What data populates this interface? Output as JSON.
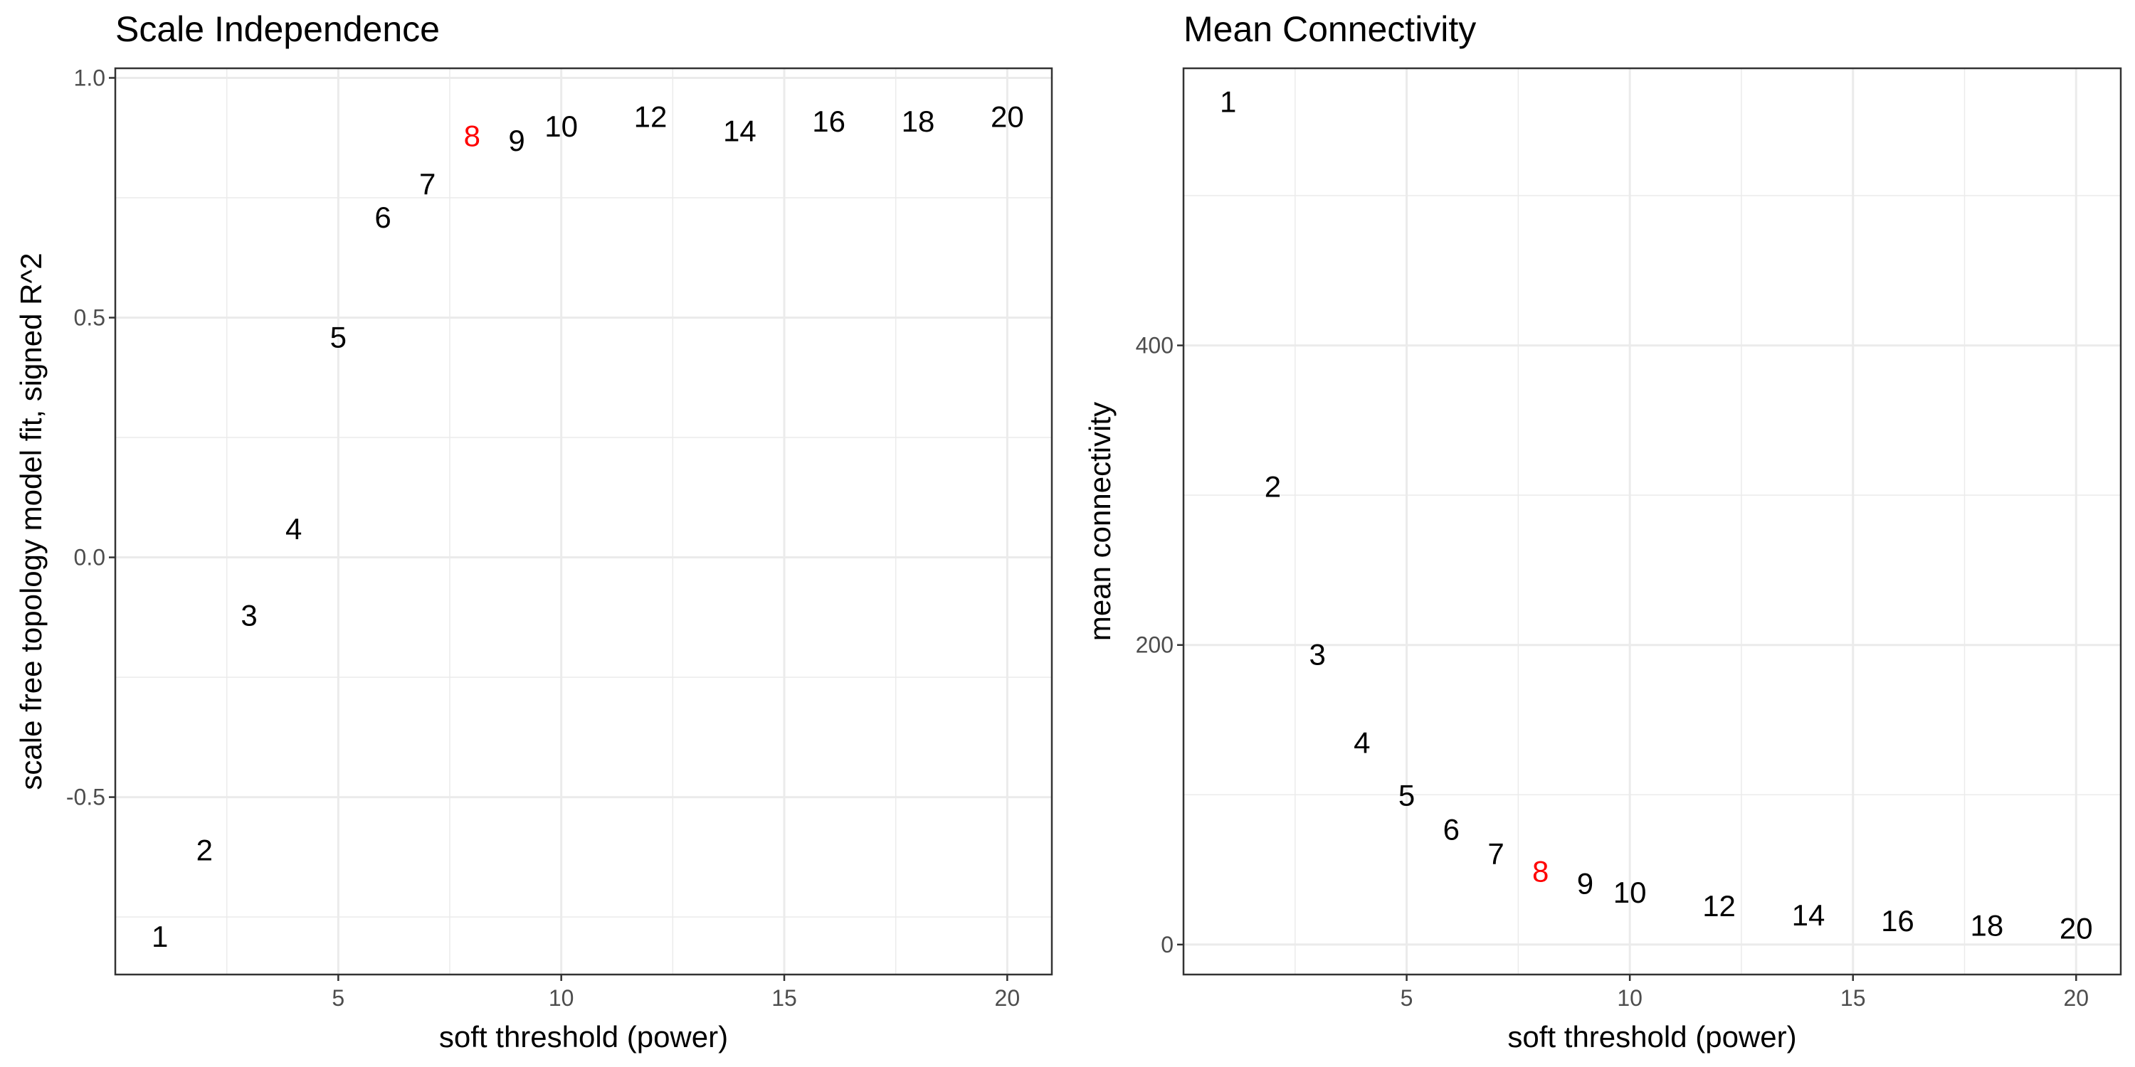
{
  "highlight_power": 8,
  "colors": {
    "normal": "#000000",
    "highlight": "#ff0000"
  },
  "chart_data": [
    {
      "type": "scatter",
      "title": "Scale Independence",
      "xlabel": "soft threshold (power)",
      "ylabel": "scale free topology model fit, signed R^2",
      "xlim": [
        0,
        21
      ],
      "ylim": [
        -0.87,
        1.02
      ],
      "x_ticks": [
        5,
        10,
        15,
        20
      ],
      "y_ticks": [
        -0.5,
        0.0,
        0.5,
        1.0
      ],
      "x_tick_labels": [
        "5",
        "10",
        "15",
        "20"
      ],
      "y_tick_labels": [
        "-0.5",
        "0.0",
        "0.5",
        "1.0"
      ],
      "grid": true,
      "points": [
        {
          "x": 1,
          "y": -0.79,
          "label": "1"
        },
        {
          "x": 2,
          "y": -0.61,
          "label": "2"
        },
        {
          "x": 3,
          "y": -0.12,
          "label": "3"
        },
        {
          "x": 4,
          "y": 0.06,
          "label": "4"
        },
        {
          "x": 5,
          "y": 0.46,
          "label": "5"
        },
        {
          "x": 6,
          "y": 0.71,
          "label": "6"
        },
        {
          "x": 7,
          "y": 0.78,
          "label": "7"
        },
        {
          "x": 8,
          "y": 0.88,
          "label": "8"
        },
        {
          "x": 9,
          "y": 0.87,
          "label": "9"
        },
        {
          "x": 10,
          "y": 0.9,
          "label": "10"
        },
        {
          "x": 12,
          "y": 0.92,
          "label": "12"
        },
        {
          "x": 14,
          "y": 0.89,
          "label": "14"
        },
        {
          "x": 16,
          "y": 0.91,
          "label": "16"
        },
        {
          "x": 18,
          "y": 0.91,
          "label": "18"
        },
        {
          "x": 20,
          "y": 0.92,
          "label": "20"
        }
      ]
    },
    {
      "type": "scatter",
      "title": "Mean Connectivity",
      "xlabel": "soft threshold (power)",
      "ylabel": "mean connectivity",
      "xlim": [
        0,
        21
      ],
      "ylim": [
        -20,
        585
      ],
      "x_ticks": [
        5,
        10,
        15,
        20
      ],
      "y_ticks": [
        0,
        200,
        400
      ],
      "x_tick_labels": [
        "5",
        "10",
        "15",
        "20"
      ],
      "y_tick_labels": [
        "0",
        "200",
        "400"
      ],
      "grid": true,
      "points": [
        {
          "x": 1,
          "y": 563,
          "label": "1"
        },
        {
          "x": 2,
          "y": 306,
          "label": "2"
        },
        {
          "x": 3,
          "y": 194,
          "label": "3"
        },
        {
          "x": 4,
          "y": 135,
          "label": "4"
        },
        {
          "x": 5,
          "y": 100,
          "label": "5"
        },
        {
          "x": 6,
          "y": 77,
          "label": "6"
        },
        {
          "x": 7,
          "y": 61,
          "label": "7"
        },
        {
          "x": 8,
          "y": 49,
          "label": "8"
        },
        {
          "x": 9,
          "y": 41,
          "label": "9"
        },
        {
          "x": 10,
          "y": 35,
          "label": "10"
        },
        {
          "x": 12,
          "y": 26,
          "label": "12"
        },
        {
          "x": 14,
          "y": 20,
          "label": "14"
        },
        {
          "x": 16,
          "y": 16,
          "label": "16"
        },
        {
          "x": 18,
          "y": 13,
          "label": "18"
        },
        {
          "x": 20,
          "y": 11,
          "label": "20"
        }
      ]
    }
  ]
}
